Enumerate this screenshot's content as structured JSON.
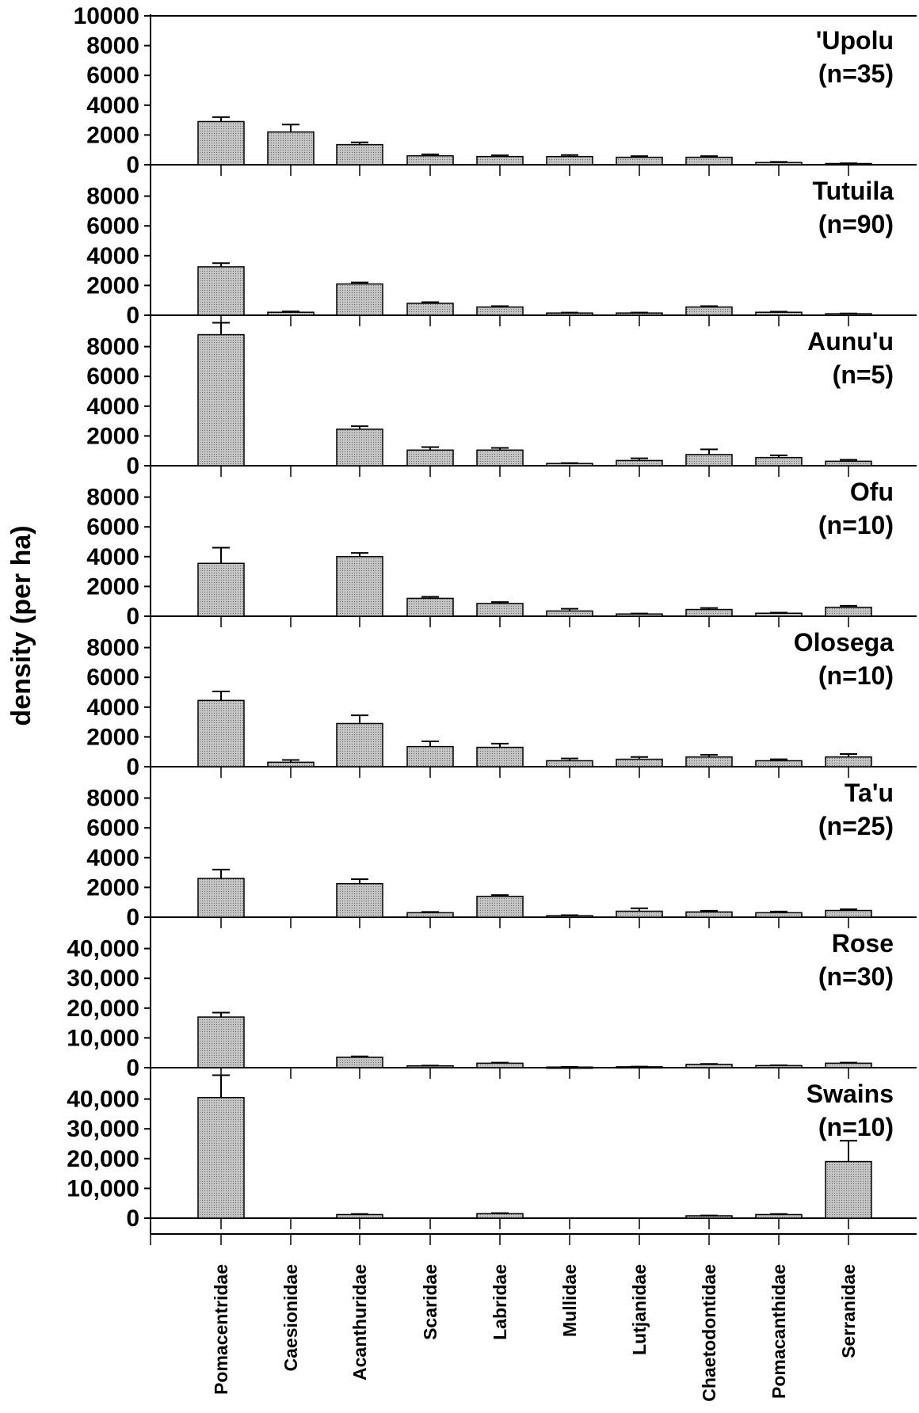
{
  "chart_data": {
    "type": "bar",
    "ylabel": "density (per ha)",
    "categories": [
      "Pomacentridae",
      "Caesionidae",
      "Acanthuridae",
      "Scaridae",
      "Labridae",
      "Mullidae",
      "Lutjanidae",
      "Chaetodontidae",
      "Pomacanthidae",
      "Serranidae"
    ],
    "panels": [
      {
        "name": "'Upolu",
        "n": "(n=35)",
        "ylim": [
          0,
          10000
        ],
        "ticks": [
          "10000",
          "8000",
          "6000",
          "4000",
          "2000",
          "0"
        ],
        "values": [
          2900,
          2200,
          1350,
          600,
          550,
          550,
          500,
          500,
          150,
          80
        ],
        "errors": [
          300,
          500,
          150,
          100,
          80,
          100,
          80,
          80,
          40,
          20
        ]
      },
      {
        "name": "Tutuila",
        "n": "(n=90)",
        "ylim": [
          0,
          10000
        ],
        "ticks": [
          "8000",
          "6000",
          "4000",
          "2000",
          "0"
        ],
        "values": [
          3250,
          200,
          2100,
          800,
          550,
          150,
          150,
          550,
          200,
          100
        ],
        "errors": [
          250,
          50,
          100,
          80,
          60,
          30,
          30,
          60,
          40,
          20
        ]
      },
      {
        "name": "Aunu'u",
        "n": "(n=5)",
        "ylim": [
          0,
          10000
        ],
        "ticks": [
          "8000",
          "6000",
          "4000",
          "2000",
          "0"
        ],
        "values": [
          8800,
          0,
          2450,
          1050,
          1050,
          150,
          350,
          750,
          550,
          300
        ],
        "errors": [
          800,
          0,
          200,
          200,
          150,
          30,
          150,
          350,
          150,
          100
        ]
      },
      {
        "name": "Ofu",
        "n": "(n=10)",
        "ylim": [
          0,
          10000
        ],
        "ticks": [
          "8000",
          "6000",
          "4000",
          "2000",
          "0"
        ],
        "values": [
          3550,
          0,
          4000,
          1200,
          850,
          350,
          150,
          450,
          200,
          600
        ],
        "errors": [
          1050,
          0,
          250,
          100,
          100,
          150,
          30,
          100,
          40,
          100
        ]
      },
      {
        "name": "Olosega",
        "n": "(n=10)",
        "ylim": [
          0,
          10000
        ],
        "ticks": [
          "8000",
          "6000",
          "4000",
          "2000",
          "0"
        ],
        "values": [
          4450,
          300,
          2900,
          1350,
          1300,
          400,
          500,
          650,
          400,
          650
        ],
        "errors": [
          600,
          150,
          550,
          350,
          250,
          150,
          150,
          150,
          100,
          200
        ]
      },
      {
        "name": "Ta'u",
        "n": "(n=25)",
        "ylim": [
          0,
          10000
        ],
        "ticks": [
          "8000",
          "6000",
          "4000",
          "2000",
          "0"
        ],
        "values": [
          2600,
          0,
          2250,
          300,
          1400,
          100,
          400,
          350,
          300,
          450
        ],
        "errors": [
          600,
          0,
          300,
          50,
          80,
          30,
          200,
          80,
          80,
          80
        ]
      },
      {
        "name": "Rose",
        "n": "(n=30)",
        "ylim": [
          0,
          50000
        ],
        "ticks": [
          "40,000",
          "30,000",
          "20,000",
          "10,000",
          "0"
        ],
        "values": [
          17000,
          0,
          3500,
          600,
          1500,
          200,
          300,
          1100,
          700,
          1500
        ],
        "errors": [
          1500,
          0,
          300,
          100,
          200,
          50,
          50,
          150,
          100,
          200
        ]
      },
      {
        "name": "Swains",
        "n": "(n=10)",
        "ylim": [
          0,
          50000
        ],
        "ticks": [
          "40,000",
          "30,000",
          "20,000",
          "10,000",
          "0"
        ],
        "values": [
          40500,
          0,
          1200,
          0,
          1500,
          0,
          0,
          800,
          1200,
          19000
        ],
        "errors": [
          7500,
          0,
          200,
          0,
          200,
          0,
          0,
          100,
          200,
          7000
        ]
      }
    ],
    "colors": {
      "bar_fill": "#b3b3b3",
      "bar_stroke": "#000000"
    },
    "grid": false
  }
}
